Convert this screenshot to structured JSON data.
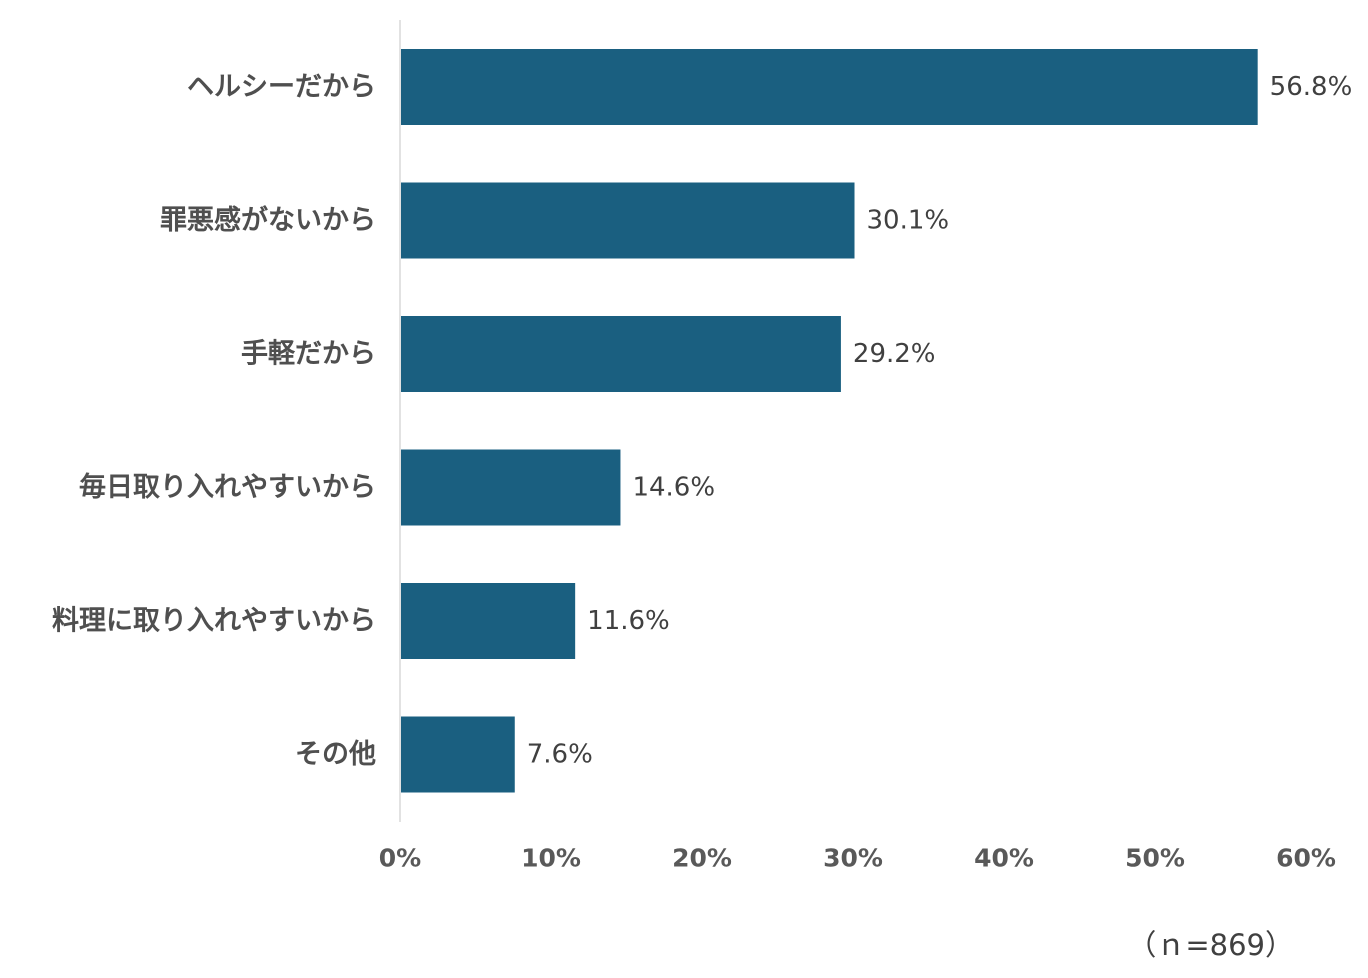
{
  "chart_data": {
    "type": "bar",
    "orientation": "horizontal",
    "categories": [
      "ヘルシーだから",
      "罪悪感がないから",
      "手軽だから",
      "毎日取り入れやすいから",
      "料理に取り入れやすいから",
      "その他"
    ],
    "values": [
      56.8,
      30.1,
      29.2,
      14.6,
      11.6,
      7.6
    ],
    "value_labels": [
      "56.8%",
      "30.1%",
      "29.2%",
      "14.6%",
      "11.6%",
      "7.6%"
    ],
    "xlim": [
      0,
      60
    ],
    "xticks": [
      0,
      10,
      20,
      30,
      40,
      50,
      60
    ],
    "xtick_labels": [
      "0%",
      "10%",
      "20%",
      "30%",
      "40%",
      "50%",
      "60%"
    ],
    "bar_color": "#1a5f80",
    "grid": false,
    "title": "",
    "xlabel": "",
    "ylabel": ""
  },
  "note": "（ｎ=869）"
}
